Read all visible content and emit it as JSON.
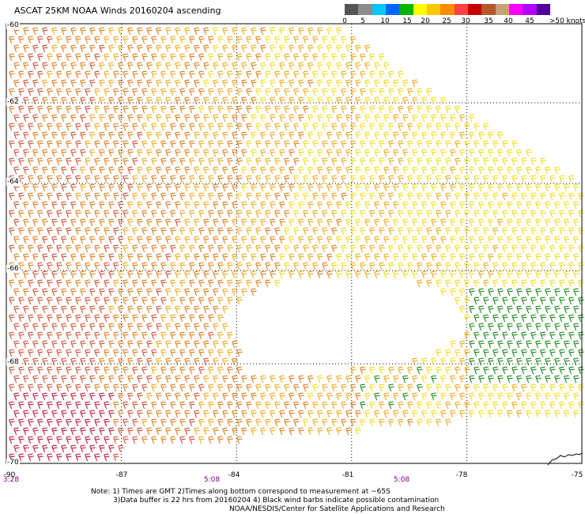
{
  "title": "ASCAT 25KM NOAA Winds 20160204 ascending",
  "colorbar": {
    "colors": [
      "#555555",
      "#8c8c8c",
      "#00c8ff",
      "#0064ff",
      "#00b400",
      "#ffff00",
      "#ffc800",
      "#ff8c00",
      "#ff4040",
      "#c80000",
      "#b45a28",
      "#c8a078",
      "#ff00ff",
      "#b400ff",
      "#500096"
    ],
    "labels": [
      "0",
      "5",
      "10",
      "15",
      "20",
      "25",
      "30",
      "35",
      "40",
      "45",
      ">50 knots"
    ]
  },
  "lat_labels": [
    "-60",
    "-62",
    "-64",
    "-66",
    "-68",
    "-70"
  ],
  "lon_labels": [
    "-90",
    "-87",
    "-84",
    "-81",
    "-78",
    "-75"
  ],
  "time_labels": [
    "3:28",
    "5:08",
    "5:08"
  ],
  "notes": [
    "Note: 1) Times are GMT 2)Times along bottom correspond to measurement at ~65S",
    "3)Data buffer is 22 hrs from 20160204 4) Black wind barbs indicate possible contamination",
    "NOAA/NESDIS/Center for Satellite Applications and Research"
  ],
  "map_extent": {
    "lon": [
      -90,
      -75
    ],
    "lat": [
      -70,
      -60
    ]
  },
  "wind_colors": {
    "25_30": "#f0d800",
    "30_35": "#f0a000",
    "35_40": "#e07000",
    "40_45": "#d04020",
    "45_50": "#c00030",
    "20_25": "#008000"
  }
}
